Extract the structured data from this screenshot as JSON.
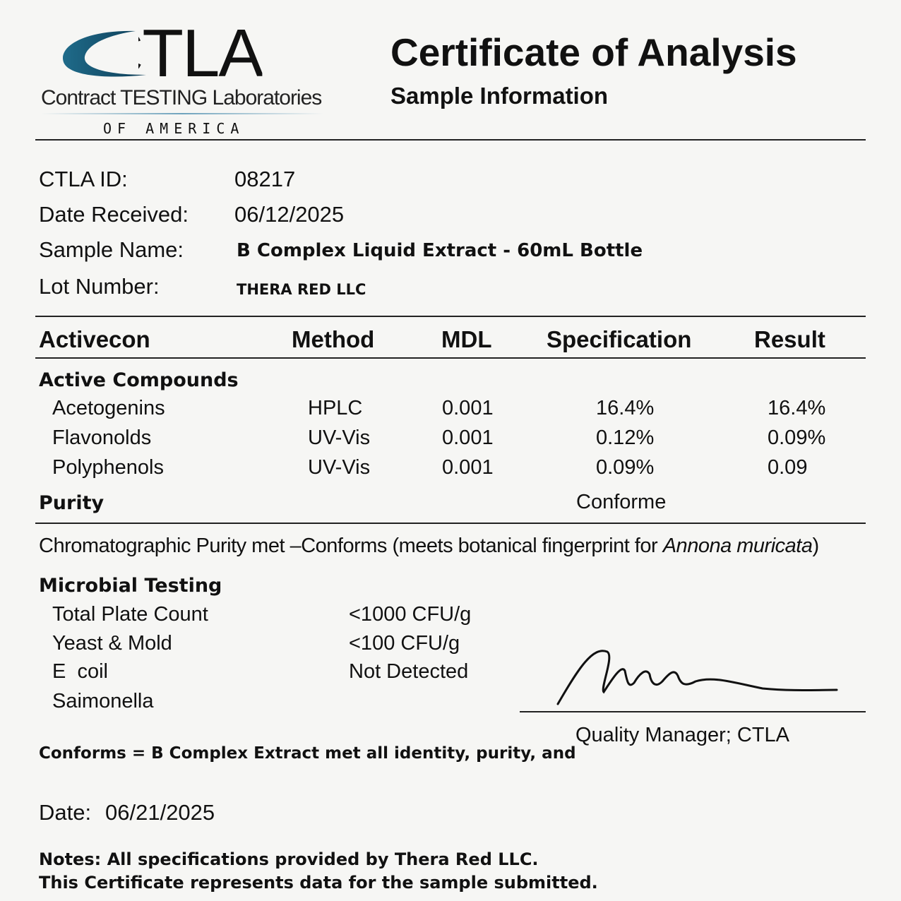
{
  "logo": {
    "mark": "CTLA",
    "line1": "Contract TESTING Laboratories",
    "line2": "OF AMERICA",
    "accent": "#1f6b8a"
  },
  "header": {
    "title": "Certificate of Analysis",
    "subtitle": "Sample Information"
  },
  "sample": [
    {
      "label": "CTLA ID:",
      "value": "08217"
    },
    {
      "label": "Date Received:",
      "value": "06/12/2025"
    },
    {
      "label": "Sample Name:",
      "value": "B Complex Liquid Extract - 60mL Bottle"
    },
    {
      "label": "Lot Number:",
      "value": "THERA RED LLC"
    }
  ],
  "table": {
    "columns": [
      "Activecon",
      "Method",
      "MDL",
      "Specification",
      "Result"
    ],
    "section": "Active Compounds",
    "rows": [
      {
        "name": "Acetogenins",
        "method": "HPLC",
        "mdl": "0.001",
        "spec": "16.4%",
        "result": "16.4%"
      },
      {
        "name": "Flavonolds",
        "method": "UV-Vis",
        "mdl": "0.001",
        "spec": "0.12%",
        "result": "0.09%"
      },
      {
        "name": "Polyphenols",
        "method": "UV-Vis",
        "mdl": "0.001",
        "spec": "0.09%",
        "result": "0.09"
      }
    ],
    "purity_label": "Purity",
    "purity_value": "Conforme"
  },
  "purity_note": {
    "text": "Chromatographic Purity met –Conforms (meets botanical fingerprint for ",
    "species": "Annona muricata",
    "close": ")"
  },
  "microbial": {
    "title": "Microbial Testing",
    "rows": [
      {
        "name": "Total Plate Count",
        "value": "<1000 CFU/g"
      },
      {
        "name": "Yeast & Mold",
        "value": "<100 CFU/g"
      },
      {
        "name": "E  coil",
        "value": "Not Detected"
      },
      {
        "name": "Saimonella",
        "value": ""
      }
    ]
  },
  "signature": {
    "title": "Quality Manager; CTLA"
  },
  "conforms_note": "Conforms = B Complex Extract met all identity, purity, and",
  "date": {
    "label": "Date:",
    "value": "06/21/2025"
  },
  "notes": [
    "Notes: All specifications provided by Thera Red LLC.",
    "This Certificate represents data for the sample submitted."
  ]
}
